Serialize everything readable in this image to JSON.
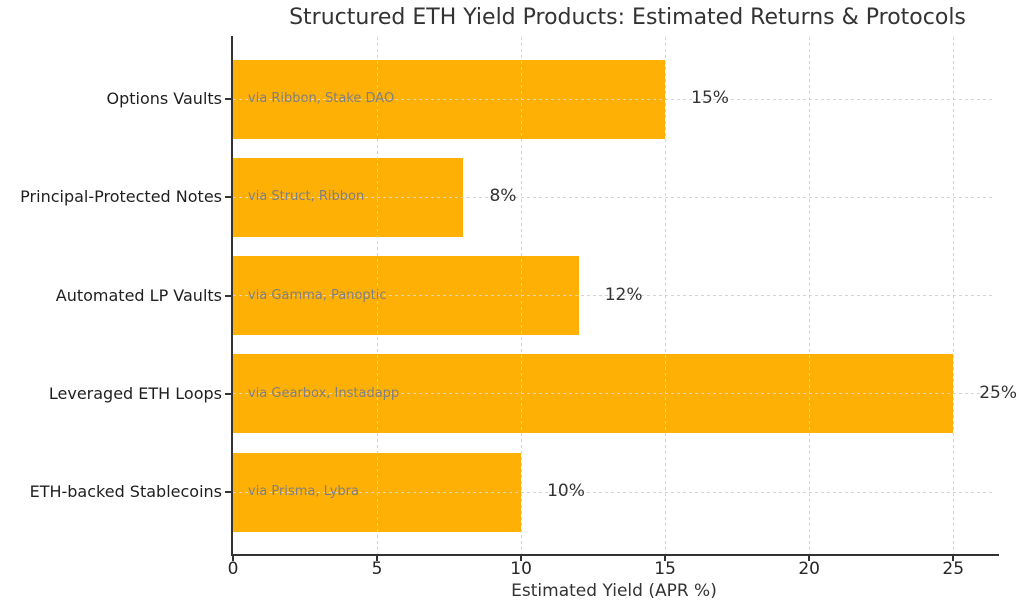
{
  "chart_data": {
    "type": "bar",
    "orientation": "horizontal",
    "title": "Structured ETH Yield Products: Estimated Returns & Protocols",
    "xlabel": "Estimated Yield (APR %)",
    "ylabel": "",
    "categories": [
      "Options Vaults",
      "Principal-Protected Notes",
      "Automated LP Vaults",
      "Leveraged ETH Loops",
      "ETH-backed Stablecoins"
    ],
    "values": [
      15,
      8,
      12,
      25,
      10
    ],
    "value_labels": [
      "15%",
      "8%",
      "12%",
      "25%",
      "10%"
    ],
    "bar_annotations": [
      "via Ribbon, Stake DAO",
      "via Struct, Ribbon",
      "via Gamma, Panoptic",
      "via Gearbox, Instadapp",
      "via Prisma, Lybra"
    ],
    "xticks": [
      0,
      5,
      10,
      15,
      20,
      25
    ],
    "xtick_labels": [
      "0",
      "5",
      "10",
      "15",
      "20",
      "25"
    ],
    "xlim": [
      0,
      26.45
    ],
    "legend": "none",
    "grid": {
      "style": "dashed",
      "axes": "both"
    },
    "colors": {
      "bar": "#FFB005",
      "grid": "#D4D4D4",
      "spine": "#333333",
      "title": "#333333",
      "category_label": "#1F1F1F",
      "value_label": "#333333",
      "annotation": "#7F7F7F",
      "tick_label": "#262626",
      "background": "#FFFFFF"
    }
  }
}
